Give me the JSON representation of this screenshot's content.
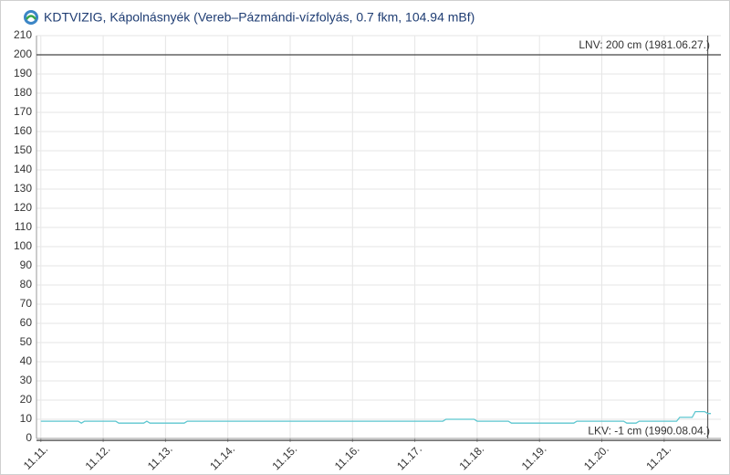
{
  "chart_data": {
    "type": "line",
    "title": "KDTVIZIG, Kápolnásnyék (Vereb–Pázmándi-vízfolyás, 0.7 fkm, 104.94 mBf)",
    "x": [
      0,
      0.6,
      0.65,
      0.7,
      1.2,
      1.25,
      1.65,
      1.7,
      1.75,
      2.3,
      2.35,
      6.45,
      6.5,
      6.95,
      7.0,
      7.5,
      7.55,
      8.55,
      8.6,
      9.35,
      9.4,
      9.55,
      9.6,
      10.2,
      10.25,
      10.45,
      10.5,
      10.65,
      10.7,
      10.75
    ],
    "series": [
      {
        "color": "#5cc6cf",
        "values": [
          9,
          9,
          8,
          9,
          9,
          8,
          8,
          9,
          8,
          8,
          9,
          9,
          10,
          10,
          9,
          9,
          8,
          8,
          9,
          9,
          8,
          8,
          9,
          9,
          11,
          11,
          14,
          14,
          13,
          13
        ]
      }
    ],
    "xlim": [
      -0.07,
      10.91
    ],
    "xticks": [
      {
        "value": 0,
        "label": "11.11."
      },
      {
        "value": 1,
        "label": "11.12."
      },
      {
        "value": 2,
        "label": "11.13."
      },
      {
        "value": 3,
        "label": "11.14."
      },
      {
        "value": 4,
        "label": "11.15."
      },
      {
        "value": 5,
        "label": "11.16."
      },
      {
        "value": 6,
        "label": "11.17."
      },
      {
        "value": 7,
        "label": "11.18."
      },
      {
        "value": 8,
        "label": "11.19."
      },
      {
        "value": 9,
        "label": "11.20."
      },
      {
        "value": 10,
        "label": "11.21."
      }
    ],
    "ylim": [
      0,
      210
    ],
    "yticks": [
      0,
      10,
      20,
      30,
      40,
      50,
      60,
      70,
      80,
      90,
      100,
      110,
      120,
      130,
      140,
      150,
      160,
      170,
      180,
      190,
      200,
      210
    ],
    "grid": true,
    "reference_lines": [
      {
        "label": "LNV: 200 cm (1981.06.27.)",
        "value": 200
      },
      {
        "label": "LKV: -1 cm (1990.08.04.)",
        "value": -1
      }
    ],
    "now_x": 10.7
  }
}
